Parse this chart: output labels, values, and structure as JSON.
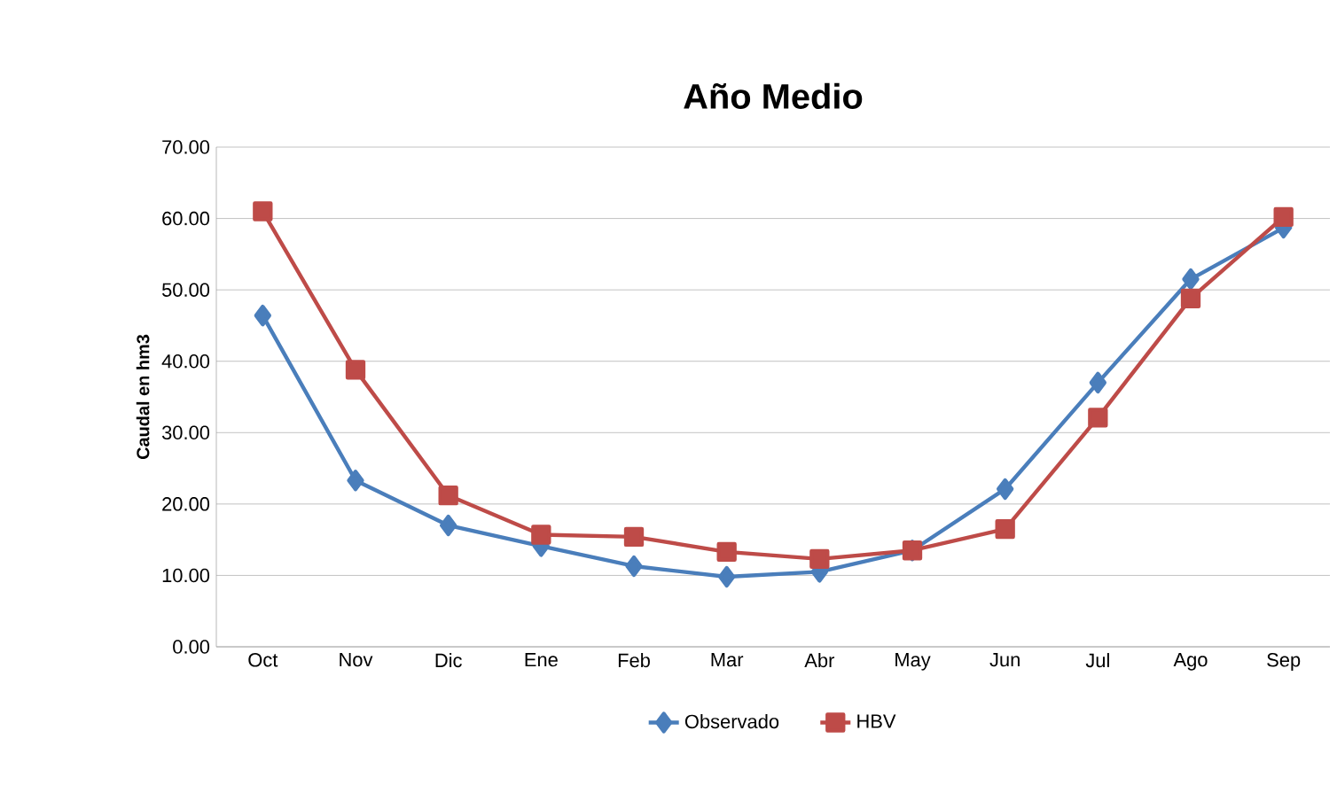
{
  "chart_data": {
    "type": "line",
    "title": "Año Medio",
    "ylabel": "Caudal en hm3",
    "categories": [
      "Oct",
      "Nov",
      "Dic",
      "Ene",
      "Feb",
      "Mar",
      "Abr",
      "May",
      "Jun",
      "Jul",
      "Ago",
      "Sep"
    ],
    "series": [
      {
        "name": "Observado",
        "color": "#4a7ebb",
        "marker": "diamond",
        "values": [
          46.4,
          23.3,
          17.0,
          14.1,
          11.3,
          9.8,
          10.5,
          13.5,
          22.1,
          37.0,
          51.5,
          58.7
        ]
      },
      {
        "name": "HBV",
        "color": "#be4b48",
        "marker": "square",
        "values": [
          61.0,
          38.8,
          21.2,
          15.7,
          15.4,
          13.3,
          12.3,
          13.5,
          16.5,
          32.1,
          48.8,
          60.2
        ]
      }
    ],
    "ylim": [
      0,
      70
    ],
    "yticks": [
      {
        "value": 0,
        "label": "0.00"
      },
      {
        "value": 10,
        "label": "10.00"
      },
      {
        "value": 20,
        "label": "20.00"
      },
      {
        "value": 30,
        "label": "30.00"
      },
      {
        "value": 40,
        "label": "40.00"
      },
      {
        "value": 50,
        "label": "50.00"
      },
      {
        "value": 60,
        "label": "60.00"
      },
      {
        "value": 70,
        "label": "70.00"
      }
    ],
    "grid": "y",
    "legend": "bottom",
    "line_style": "solid"
  }
}
